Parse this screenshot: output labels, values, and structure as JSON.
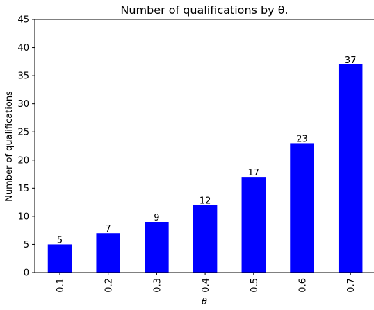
{
  "chart_data": {
    "type": "bar",
    "title": "Number of qualifications by θ.",
    "xlabel": "θ",
    "ylabel": "Number of qualifications",
    "categories": [
      "0.1",
      "0.2",
      "0.3",
      "0.4",
      "0.5",
      "0.6",
      "0.7"
    ],
    "values": [
      5,
      7,
      9,
      12,
      17,
      23,
      37
    ],
    "data_labels": [
      "5",
      "7",
      "9",
      "12",
      "17",
      "23",
      "37"
    ],
    "yticks": [
      0,
      5,
      10,
      15,
      20,
      25,
      30,
      35,
      40,
      45
    ],
    "ytick_labels": [
      "0",
      "5",
      "10",
      "15",
      "20",
      "25",
      "30",
      "35",
      "40",
      "45"
    ],
    "ylim": [
      0,
      45
    ],
    "bar_color": "#0000ff",
    "grid": false,
    "legend": "none"
  }
}
